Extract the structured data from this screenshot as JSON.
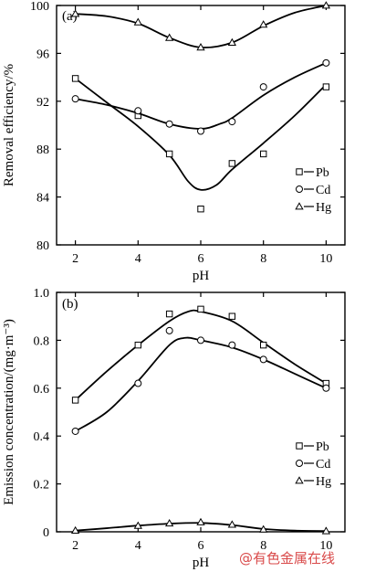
{
  "chart_data": [
    {
      "type": "line",
      "panel_label": "(a)",
      "xlabel": "pH",
      "ylabel": "Removal efficiency/%",
      "xlim": [
        1.4,
        10.6
      ],
      "ylim": [
        80,
        100
      ],
      "xticks": [
        2,
        4,
        6,
        8,
        10
      ],
      "yticks": [
        80,
        84,
        88,
        92,
        96,
        100
      ],
      "legend_position": "lower-right",
      "series": [
        {
          "name": "Pb",
          "marker": "square",
          "points": [
            [
              2,
              93.9
            ],
            [
              4,
              90.8
            ],
            [
              5,
              87.6
            ],
            [
              6,
              83.0
            ],
            [
              7,
              86.8
            ],
            [
              8,
              87.6
            ],
            [
              10,
              93.2
            ]
          ],
          "fit": [
            [
              2,
              93.9
            ],
            [
              3,
              91.9
            ],
            [
              4,
              89.9
            ],
            [
              5,
              87.5
            ],
            [
              5.6,
              85.3
            ],
            [
              6,
              84.6
            ],
            [
              6.5,
              85.0
            ],
            [
              7,
              86.3
            ],
            [
              8,
              88.5
            ],
            [
              9,
              90.8
            ],
            [
              10,
              93.4
            ]
          ]
        },
        {
          "name": "Cd",
          "marker": "circle",
          "points": [
            [
              2,
              92.2
            ],
            [
              4,
              91.2
            ],
            [
              5,
              90.1
            ],
            [
              6,
              89.5
            ],
            [
              7,
              90.3
            ],
            [
              8,
              93.2
            ],
            [
              10,
              95.2
            ]
          ],
          "fit": [
            [
              2,
              92.2
            ],
            [
              3,
              91.7
            ],
            [
              4,
              91.0
            ],
            [
              5,
              90.1
            ],
            [
              6,
              89.7
            ],
            [
              6.6,
              90.1
            ],
            [
              7,
              90.6
            ],
            [
              8,
              92.5
            ],
            [
              9,
              94.0
            ],
            [
              10,
              95.2
            ]
          ]
        },
        {
          "name": "Hg",
          "marker": "triangle",
          "points": [
            [
              2,
              99.3
            ],
            [
              4,
              98.6
            ],
            [
              5,
              97.3
            ],
            [
              6,
              96.5
            ],
            [
              7,
              96.9
            ],
            [
              8,
              98.4
            ],
            [
              10,
              100.0
            ]
          ],
          "fit": [
            [
              2,
              99.3
            ],
            [
              3,
              99.1
            ],
            [
              4,
              98.5
            ],
            [
              5,
              97.3
            ],
            [
              6,
              96.5
            ],
            [
              7,
              96.9
            ],
            [
              8,
              98.3
            ],
            [
              9,
              99.4
            ],
            [
              10,
              100.0
            ]
          ]
        }
      ]
    },
    {
      "type": "line",
      "panel_label": "(b)",
      "xlabel": "pH",
      "ylabel": "Emission concentration/(mg·m⁻³)",
      "xlim": [
        1.4,
        10.6
      ],
      "ylim": [
        0,
        1.0
      ],
      "xticks": [
        2,
        4,
        6,
        8,
        10
      ],
      "yticks": [
        0,
        0.2,
        0.4,
        0.6,
        0.8,
        1.0
      ],
      "ytick_labels": [
        "0",
        "0.2",
        "0.4",
        "0.6",
        "0.8",
        "1.0"
      ],
      "legend_position": "lower-right",
      "series": [
        {
          "name": "Pb",
          "marker": "square",
          "points": [
            [
              2,
              0.55
            ],
            [
              4,
              0.78
            ],
            [
              5,
              0.91
            ],
            [
              6,
              0.93
            ],
            [
              7,
              0.9
            ],
            [
              8,
              0.78
            ],
            [
              10,
              0.62
            ]
          ],
          "fit": [
            [
              2,
              0.55
            ],
            [
              3,
              0.67
            ],
            [
              4,
              0.78
            ],
            [
              5,
              0.88
            ],
            [
              5.6,
              0.92
            ],
            [
              6,
              0.92
            ],
            [
              7,
              0.88
            ],
            [
              8,
              0.79
            ],
            [
              9,
              0.7
            ],
            [
              10,
              0.62
            ]
          ]
        },
        {
          "name": "Cd",
          "marker": "circle",
          "points": [
            [
              2,
              0.42
            ],
            [
              4,
              0.62
            ],
            [
              5,
              0.84
            ],
            [
              6,
              0.8
            ],
            [
              7,
              0.78
            ],
            [
              8,
              0.72
            ],
            [
              10,
              0.6
            ]
          ],
          "fit": [
            [
              2,
              0.42
            ],
            [
              3,
              0.5
            ],
            [
              4,
              0.63
            ],
            [
              5,
              0.78
            ],
            [
              5.5,
              0.81
            ],
            [
              6,
              0.8
            ],
            [
              7,
              0.77
            ],
            [
              8,
              0.72
            ],
            [
              9,
              0.66
            ],
            [
              10,
              0.6
            ]
          ]
        },
        {
          "name": "Hg",
          "marker": "triangle",
          "points": [
            [
              2,
              0.005
            ],
            [
              4,
              0.025
            ],
            [
              5,
              0.035
            ],
            [
              6,
              0.04
            ],
            [
              7,
              0.03
            ],
            [
              8,
              0.01
            ],
            [
              10,
              0.003
            ]
          ],
          "fit": [
            [
              2,
              0.005
            ],
            [
              3,
              0.015
            ],
            [
              4,
              0.026
            ],
            [
              5,
              0.034
            ],
            [
              6,
              0.037
            ],
            [
              7,
              0.028
            ],
            [
              8,
              0.012
            ],
            [
              9,
              0.005
            ],
            [
              10,
              0.003
            ]
          ]
        }
      ]
    }
  ],
  "watermark": "@有色金属在线"
}
